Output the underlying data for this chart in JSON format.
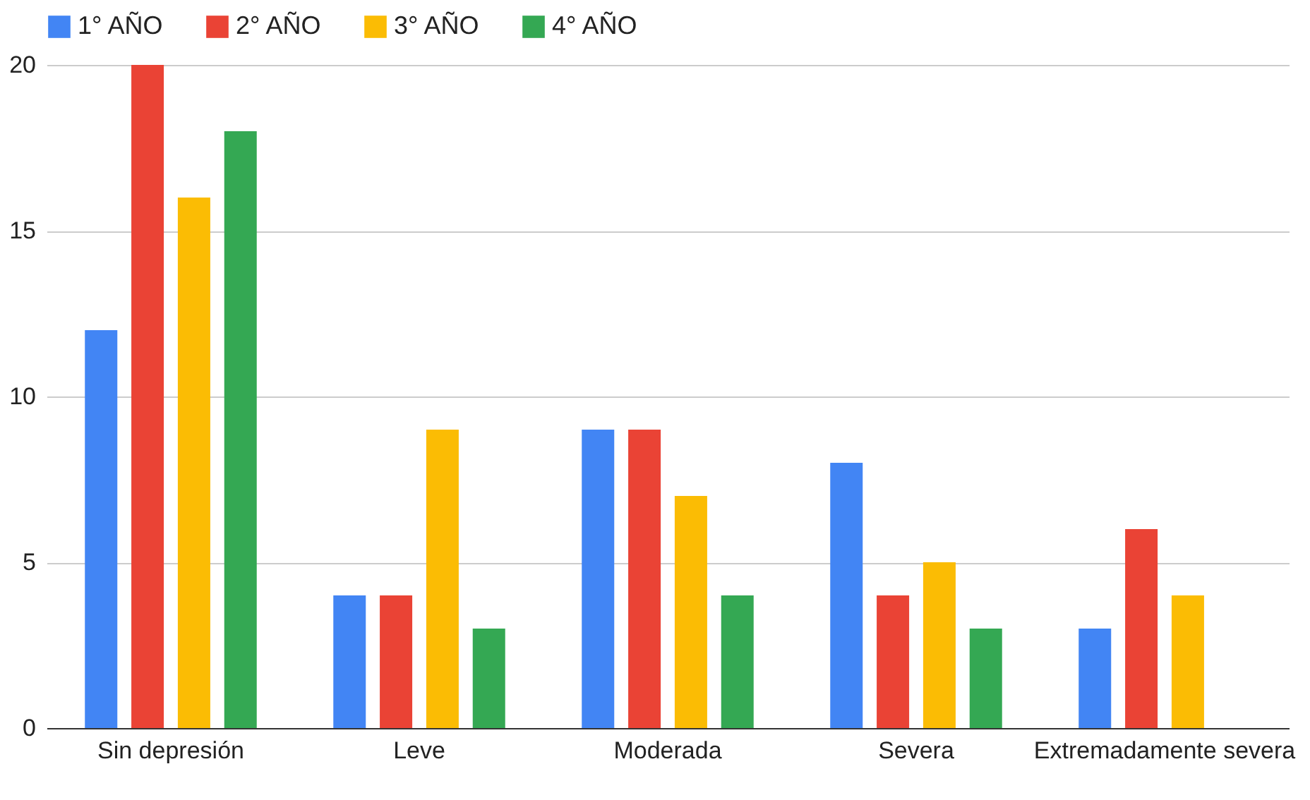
{
  "chart_data": {
    "type": "bar",
    "categories": [
      "Sin depresión",
      "Leve",
      "Moderada",
      "Severa",
      "Extremadamente severa"
    ],
    "series": [
      {
        "name": "1° AÑO",
        "color": "#4285f4",
        "values": [
          12,
          4,
          9,
          8,
          3
        ]
      },
      {
        "name": "2° AÑO",
        "color": "#ea4335",
        "values": [
          20,
          4,
          9,
          4,
          6
        ]
      },
      {
        "name": "3° AÑO",
        "color": "#fbbc04",
        "values": [
          16,
          9,
          7,
          5,
          4
        ]
      },
      {
        "name": "4° AÑO",
        "color": "#34a853",
        "values": [
          18,
          3,
          4,
          3,
          0
        ]
      }
    ],
    "ylim": [
      0,
      20
    ],
    "yticks": [
      0,
      5,
      10,
      15,
      20
    ],
    "grid": "y",
    "legend": "top"
  }
}
